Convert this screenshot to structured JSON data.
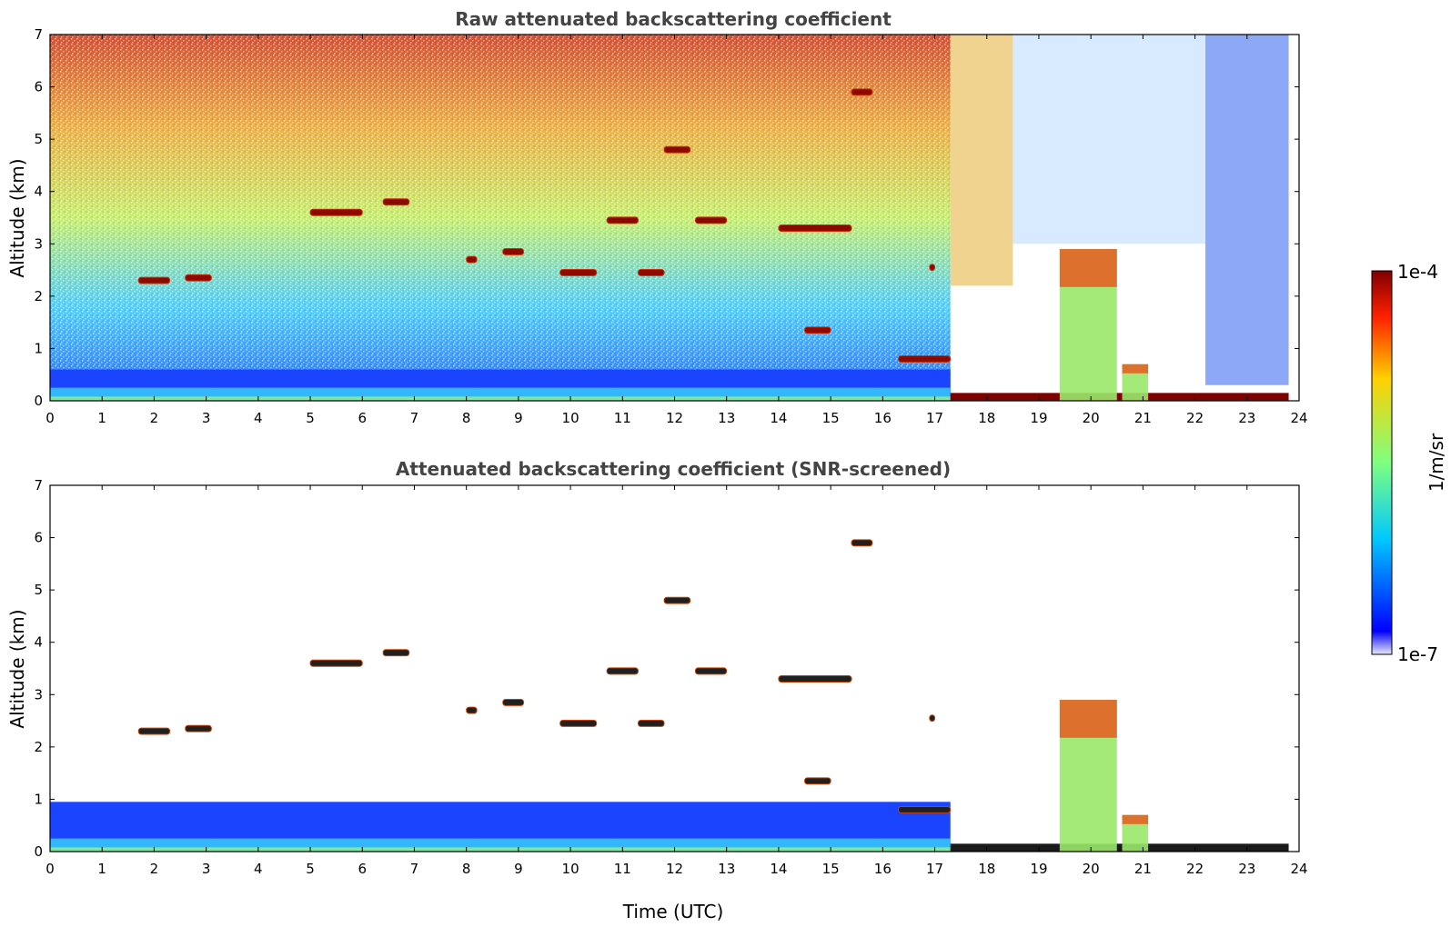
{
  "chart_data": [
    {
      "type": "heatmap",
      "title": "Raw attenuated backscattering coefficient",
      "xlabel": "",
      "ylabel": "Altitude (km)",
      "xlim": [
        0,
        24
      ],
      "ylim": [
        0,
        7
      ],
      "xticks": [
        "0",
        "1",
        "2",
        "3",
        "4",
        "5",
        "6",
        "7",
        "8",
        "9",
        "10",
        "11",
        "12",
        "13",
        "14",
        "15",
        "16",
        "17",
        "18",
        "19",
        "20",
        "21",
        "22",
        "23",
        "24"
      ],
      "yticks": [
        "0",
        "1",
        "2",
        "3",
        "4",
        "5",
        "6",
        "7"
      ],
      "features": [
        {
          "kind": "boundary-layer",
          "t_start": 0,
          "t_end": 17.3,
          "top_km": 0.6
        },
        {
          "kind": "surface-layer",
          "t_start": 17.3,
          "t_end": 23.8,
          "top_km": 0.15
        },
        {
          "kind": "cloud",
          "t": [
            1.7,
            2.3
          ],
          "alt_km": 2.3
        },
        {
          "kind": "cloud",
          "t": [
            2.6,
            3.1
          ],
          "alt_km": 2.35
        },
        {
          "kind": "cloud",
          "t": [
            5.0,
            6.0
          ],
          "alt_km": 3.6
        },
        {
          "kind": "cloud",
          "t": [
            6.4,
            6.9
          ],
          "alt_km": 3.8
        },
        {
          "kind": "cloud",
          "t": [
            8.0,
            8.2
          ],
          "alt_km": 2.7
        },
        {
          "kind": "cloud",
          "t": [
            8.7,
            9.1
          ],
          "alt_km": 2.85
        },
        {
          "kind": "cloud",
          "t": [
            9.8,
            10.5
          ],
          "alt_km": 2.45
        },
        {
          "kind": "cloud",
          "t": [
            10.7,
            11.3
          ],
          "alt_km": 3.45
        },
        {
          "kind": "cloud",
          "t": [
            11.3,
            11.8
          ],
          "alt_km": 2.45
        },
        {
          "kind": "cloud",
          "t": [
            11.8,
            12.3
          ],
          "alt_km": 4.8
        },
        {
          "kind": "cloud",
          "t": [
            12.4,
            13.0
          ],
          "alt_km": 3.45
        },
        {
          "kind": "cloud",
          "t": [
            14.0,
            15.4
          ],
          "alt_km": 3.3
        },
        {
          "kind": "cloud",
          "t": [
            14.5,
            15.0
          ],
          "alt_km": 1.35
        },
        {
          "kind": "cloud",
          "t": [
            15.4,
            15.8
          ],
          "alt_km": 5.9
        },
        {
          "kind": "cloud",
          "t": [
            16.9,
            17.0
          ],
          "alt_km": 2.55
        },
        {
          "kind": "cloud",
          "t": [
            16.3,
            17.3
          ],
          "alt_km": 0.8
        },
        {
          "kind": "convective-column",
          "t": [
            19.4,
            20.5
          ],
          "top_km": 2.9
        },
        {
          "kind": "convective-column",
          "t": [
            20.6,
            21.1
          ],
          "top_km": 0.7
        }
      ]
    },
    {
      "type": "heatmap",
      "title": "Attenuated backscattering coefficient (SNR-screened)",
      "xlabel": "Time (UTC)",
      "ylabel": "Altitude (km)",
      "xlim": [
        0,
        24
      ],
      "ylim": [
        0,
        7
      ],
      "xticks": [
        "0",
        "1",
        "2",
        "3",
        "4",
        "5",
        "6",
        "7",
        "8",
        "9",
        "10",
        "11",
        "12",
        "13",
        "14",
        "15",
        "16",
        "17",
        "18",
        "19",
        "20",
        "21",
        "22",
        "23",
        "24"
      ],
      "yticks": [
        "0",
        "1",
        "2",
        "3",
        "4",
        "5",
        "6",
        "7"
      ]
    }
  ],
  "colorbar": {
    "label": "1/m/sr",
    "max_label": "1e-4",
    "min_label": "1e-7",
    "scale": "log",
    "colormap": "jet"
  },
  "colors": {
    "jet_low": "#0000ff",
    "jet_mid": "#7fff7f",
    "jet_high": "#7f0000",
    "missing": "#ffffff"
  }
}
